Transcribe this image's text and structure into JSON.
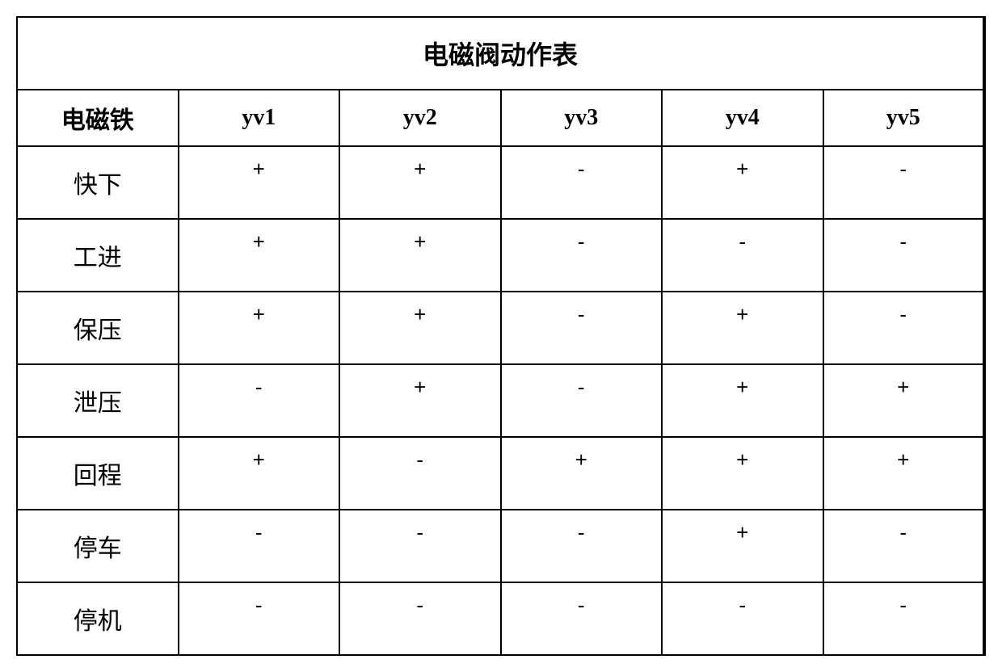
{
  "table": {
    "title": "电磁阀动作表",
    "columns": [
      "电磁铁",
      "yv1",
      "yv2",
      "yv3",
      "yv4",
      "yv5"
    ],
    "rows": [
      {
        "label": "快下",
        "cells": [
          "+",
          "+",
          "-",
          "+",
          "-"
        ]
      },
      {
        "label": "工进",
        "cells": [
          "+",
          "+",
          "-",
          "-",
          "-"
        ]
      },
      {
        "label": "保压",
        "cells": [
          "+",
          "+",
          "-",
          "+",
          "-"
        ]
      },
      {
        "label": "泄压",
        "cells": [
          "-",
          "+",
          "-",
          "+",
          "+"
        ]
      },
      {
        "label": "回程",
        "cells": [
          "+",
          "-",
          "+",
          "+",
          "+"
        ]
      },
      {
        "label": "停车",
        "cells": [
          "-",
          "-",
          "-",
          "+",
          "-"
        ]
      },
      {
        "label": "停机",
        "cells": [
          "-",
          "-",
          "-",
          "-",
          "-"
        ]
      }
    ],
    "border_color": "#000000",
    "background_color": "#ffffff",
    "title_fontsize": 32,
    "header_fontsize": 28,
    "label_fontsize": 30,
    "cell_fontsize": 26,
    "col_widths": [
      "21%",
      "15.8%",
      "15.8%",
      "15.8%",
      "15.8%",
      "15.8%"
    ]
  }
}
